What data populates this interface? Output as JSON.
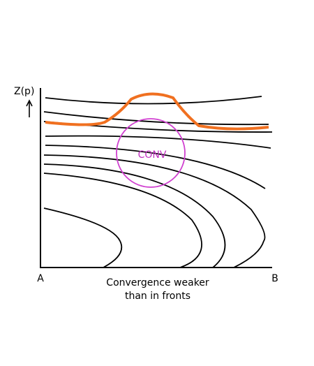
{
  "axis_label": "Z(p)",
  "region_label": "CONV",
  "left_label": "A",
  "right_label": "B",
  "caption": [
    "Convergence weaker",
    "than in fronts"
  ]
}
